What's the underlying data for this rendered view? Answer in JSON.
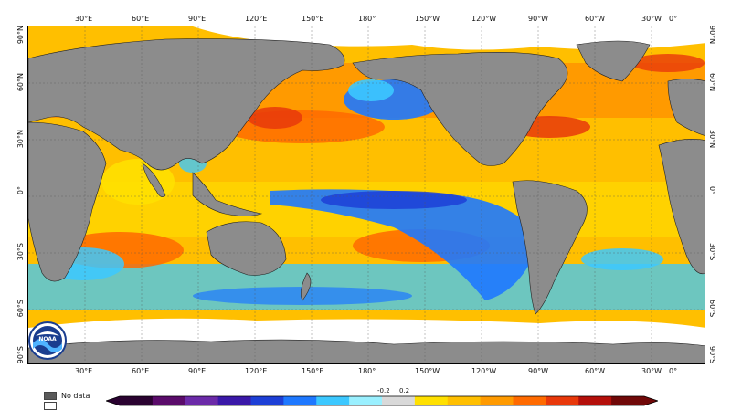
{
  "map": {
    "lon_ticks": [
      "30°E",
      "60°E",
      "90°E",
      "120°E",
      "150°E",
      "180°",
      "150°W",
      "120°W",
      "90°W",
      "60°W",
      "30°W",
      "0°"
    ],
    "lat_ticks": [
      "90°N",
      "60°N",
      "30°N",
      "0°",
      "30°S",
      "60°S",
      "90°S"
    ],
    "colors": {
      "land": "#8c8c8c",
      "ice": "#ffffff",
      "neutral": "#d9d9d9",
      "warm": [
        "#ffe000",
        "#ffbf00",
        "#ff9a00",
        "#ff6a00",
        "#e8380a",
        "#b40f0a"
      ],
      "cool": [
        "#9af0ff",
        "#3cc8ff",
        "#1e78ff",
        "#1d3fd6",
        "#3a18a8"
      ]
    }
  },
  "legend": {
    "no_data_label": "No data",
    "no_data_color": "#5a5a5a",
    "ice_color": "#ffffff"
  },
  "colorbar": {
    "labels": [
      "-0.2",
      "0.2"
    ],
    "colors": [
      "#2a0230",
      "#5a0b6a",
      "#6b2aa8",
      "#3a18a8",
      "#1d3fd6",
      "#1e78ff",
      "#3cc8ff",
      "#9af0ff",
      "#d9d9d9",
      "#ffe000",
      "#ffbf00",
      "#ff9a00",
      "#ff6a00",
      "#e8380a",
      "#b40f0a",
      "#700808"
    ]
  },
  "logo": {
    "text": "NOAA"
  }
}
